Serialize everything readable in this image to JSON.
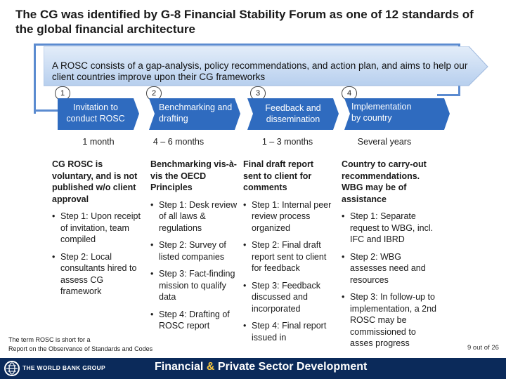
{
  "title": "The CG was identified by G-8 Financial Stability Forum as one of 12 standards of the global financial architecture",
  "banner": "A ROSC consists of a gap-analysis, policy recommendations, and action plan, and aims to help our client countries improve upon their CG frameworks",
  "steps": [
    {
      "num": "1",
      "label": "Invitation to conduct ROSC",
      "duration": "1 month"
    },
    {
      "num": "2",
      "label": "Benchmarking and drafting",
      "duration": "4 – 6 months"
    },
    {
      "num": "3",
      "label": "Feedback and dissemination",
      "duration": "1 – 3 months"
    },
    {
      "num": "4",
      "label": "Implementation by country",
      "duration": "Several years"
    }
  ],
  "columns": [
    {
      "head": "CG ROSC is voluntary, and is not published w/o client approval",
      "bullets": [
        "Step 1: Upon receipt of invitation, team compiled",
        "Step 2: Local consultants hired to assess CG framework"
      ]
    },
    {
      "head": "Benchmarking vis-à-vis the OECD Principles",
      "bullets": [
        "Step 1: Desk review of all laws & regulations",
        "Step 2: Survey of listed companies",
        "Step 3: Fact-finding mission to qualify data",
        "Step 4: Drafting of ROSC report"
      ]
    },
    {
      "head": "Final draft report sent to client for comments",
      "bullets": [
        "Step 1: Internal peer review process organized",
        "Step 2: Final draft report sent to client for feedback",
        "Step 3: Feedback discussed and incorporated",
        "Step 4: Final report issued in"
      ]
    },
    {
      "head": "Country to carry-out recommendations. WBG may be of assistance",
      "bullets": [
        "Step 1: Separate request to WBG, incl. IFC and IBRD",
        "Step 2: WBG assesses need and resources",
        "Step 3: In follow-up to implementation, a 2nd ROSC may be commissioned to asses progress"
      ]
    }
  ],
  "footnote": {
    "line1": "The term ROSC is short for a",
    "line2": "Report on the Observance of Standards and Codes"
  },
  "page": "9 out of 26",
  "footer": {
    "org": "THE WORLD BANK GROUP",
    "tagline_a": "Financial",
    "tagline_amp": "&",
    "tagline_b": "Private Sector Development"
  },
  "colors": {
    "banner": "#cfe0f5",
    "tag": "#2f6bbf",
    "frame": "#5b8bd0",
    "footer": "#0b2a5a"
  }
}
